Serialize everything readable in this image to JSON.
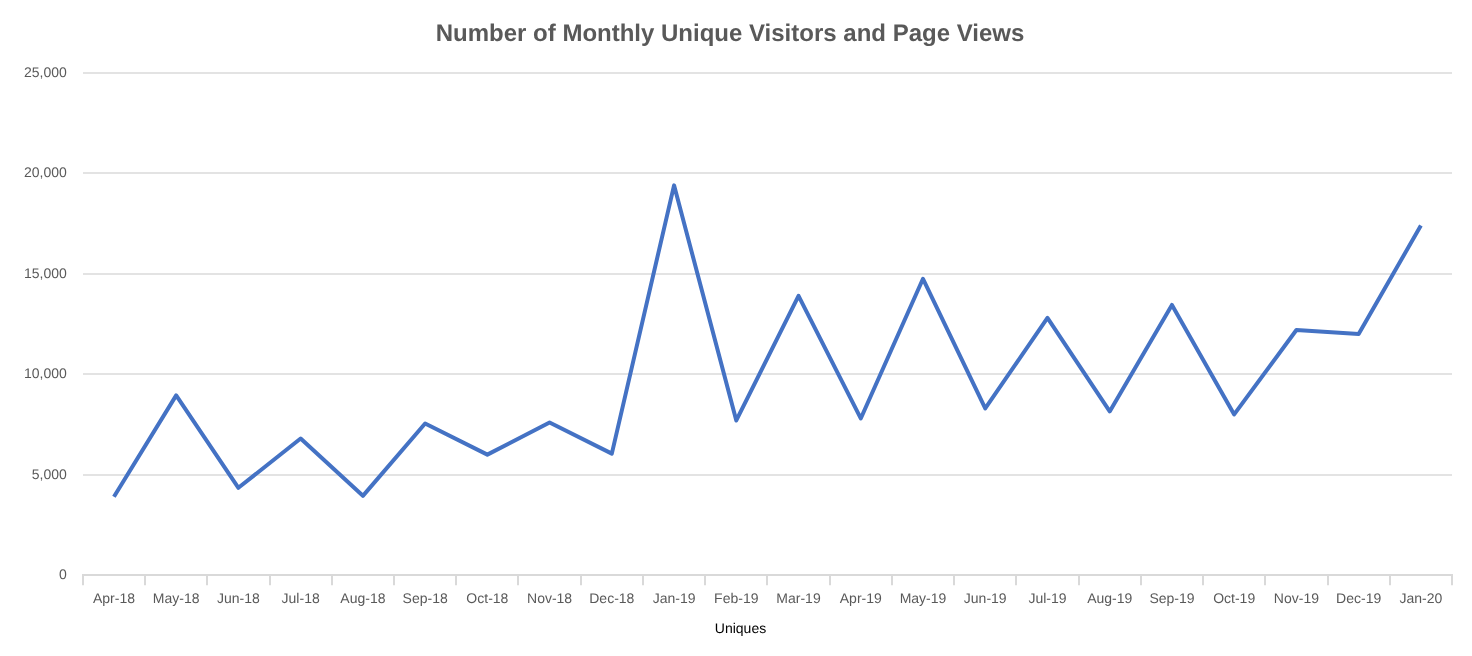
{
  "chart_data": {
    "type": "line",
    "title": "Number of Monthly Unique Visitors and Page Views",
    "categories": [
      "Apr-18",
      "May-18",
      "Jun-18",
      "Jul-18",
      "Aug-18",
      "Sep-18",
      "Oct-18",
      "Nov-18",
      "Dec-18",
      "Jan-19",
      "Feb-19",
      "Mar-19",
      "Apr-19",
      "May-19",
      "Jun-19",
      "Jul-19",
      "Aug-19",
      "Sep-19",
      "Oct-19",
      "Nov-19",
      "Dec-19",
      "Jan-20"
    ],
    "series": [
      {
        "name": "Uniques",
        "color": "#4472c4",
        "values": [
          3900,
          8950,
          4350,
          6800,
          3950,
          7550,
          6000,
          7600,
          6050,
          19400,
          7700,
          13900,
          7800,
          14750,
          8300,
          12800,
          8150,
          13450,
          8000,
          12200,
          12000,
          17400
        ]
      }
    ],
    "ylim": [
      0,
      25000
    ],
    "yticks": [
      {
        "value": 0,
        "label": "0"
      },
      {
        "value": 5000,
        "label": "5,000"
      },
      {
        "value": 10000,
        "label": "10,000"
      },
      {
        "value": 15000,
        "label": "15,000"
      },
      {
        "value": 20000,
        "label": "20,000"
      },
      {
        "value": 25000,
        "label": "25,000"
      }
    ],
    "grid": "y",
    "legend": "bottom",
    "marker": "none",
    "line_style": "solid"
  }
}
